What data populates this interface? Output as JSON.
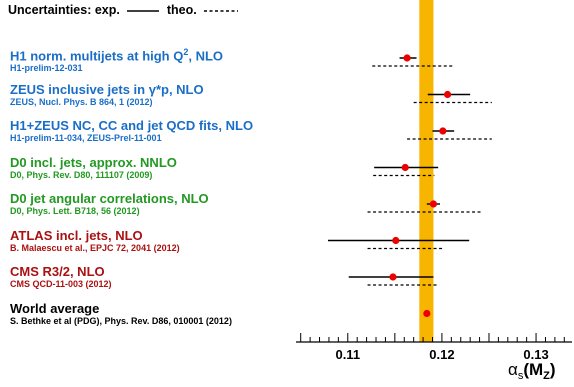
{
  "legend": {
    "prefix": "Uncertainties:",
    "exp_label": "exp.",
    "theo_label": "theo."
  },
  "colors": {
    "band": "#f7b500",
    "marker": "#ee0000",
    "blue": "#1a6ec8",
    "green": "#229922",
    "darkred": "#aa1111",
    "black": "#000000"
  },
  "chart_data": {
    "type": "scatter",
    "orientation": "horizontal-error-bars",
    "xlim": [
      0.1045,
      0.1335
    ],
    "x_ticks": [
      0.11,
      0.12,
      0.13
    ],
    "x_tick_labels": [
      "0.11",
      "0.12",
      "0.13"
    ],
    "xlabel_main": "α",
    "xlabel_sub1": "s",
    "xlabel_paren_open": "(M",
    "xlabel_sub2": "Z",
    "xlabel_paren_close": ")",
    "band": {
      "low": 0.1176,
      "high": 0.1191
    },
    "entries": [
      {
        "title": "H1 norm. multijets at high Q",
        "title_sup": "2",
        "title_suffix": ", NLO",
        "ref": "H1-prelim-12-031",
        "color": "blue",
        "value": 0.1163,
        "exp": [
          0.1155,
          0.1173
        ],
        "theo": [
          0.1126,
          0.1212
        ]
      },
      {
        "title": "ZEUS inclusive jets in γ*p, NLO",
        "title_sup": "",
        "title_suffix": "",
        "ref": "ZEUS, Nucl. Phys. B 864, 1 (2012)",
        "color": "blue",
        "value": 0.1206,
        "exp": [
          0.1185,
          0.123
        ],
        "theo": [
          0.117,
          0.1253
        ]
      },
      {
        "title": "H1+ZEUS NC, CC and jet QCD fits, NLO",
        "title_sup": "",
        "title_suffix": "",
        "ref": "H1-prelim-11-034, ZEUS-Prel-11-001",
        "color": "blue",
        "value": 0.1201,
        "exp": [
          0.119,
          0.1213
        ],
        "theo": [
          0.1163,
          0.1253
        ]
      },
      {
        "title": "D0 incl. jets, approx. NNLO",
        "title_sup": "",
        "title_suffix": "",
        "ref": "D0, Phys. Rev. D80, 111107 (2009)",
        "color": "green",
        "value": 0.1161,
        "exp": [
          0.1128,
          0.1196
        ],
        "theo": [
          0.1127,
          0.1192
        ]
      },
      {
        "title": "D0 jet angular correlations, NLO",
        "title_sup": "",
        "title_suffix": "",
        "ref": "D0, Phys. Lett. B718, 56 (2012)",
        "color": "green",
        "value": 0.1191,
        "exp": [
          0.1184,
          0.1198
        ],
        "theo": [
          0.1121,
          0.1241
        ]
      },
      {
        "title": "ATLAS incl. jets, NLO",
        "title_sup": "",
        "title_suffix": "",
        "ref": "B. Malaescu et al., EPJC 72, 2041 (2012)",
        "color": "darkred",
        "value": 0.1151,
        "exp": [
          0.1079,
          0.1229
        ],
        "theo": [
          0.1121,
          0.1202
        ]
      },
      {
        "title": "CMS R3/2, NLO",
        "title_sup": "",
        "title_suffix": "",
        "ref": "CMS QCD-11-003 (2012)",
        "color": "darkred",
        "value": 0.1148,
        "exp": [
          0.1101,
          0.1191
        ],
        "theo": [
          0.1121,
          0.1197
        ]
      },
      {
        "title": "World average",
        "title_sup": "",
        "title_suffix": "",
        "ref": "S. Bethke et al (PDG), Phys. Rev. D86, 010001 (2012)",
        "color": "black",
        "value": 0.1184,
        "exp": [
          0.1184,
          0.1184
        ],
        "theo": [
          0.1184,
          0.1184
        ]
      }
    ]
  }
}
